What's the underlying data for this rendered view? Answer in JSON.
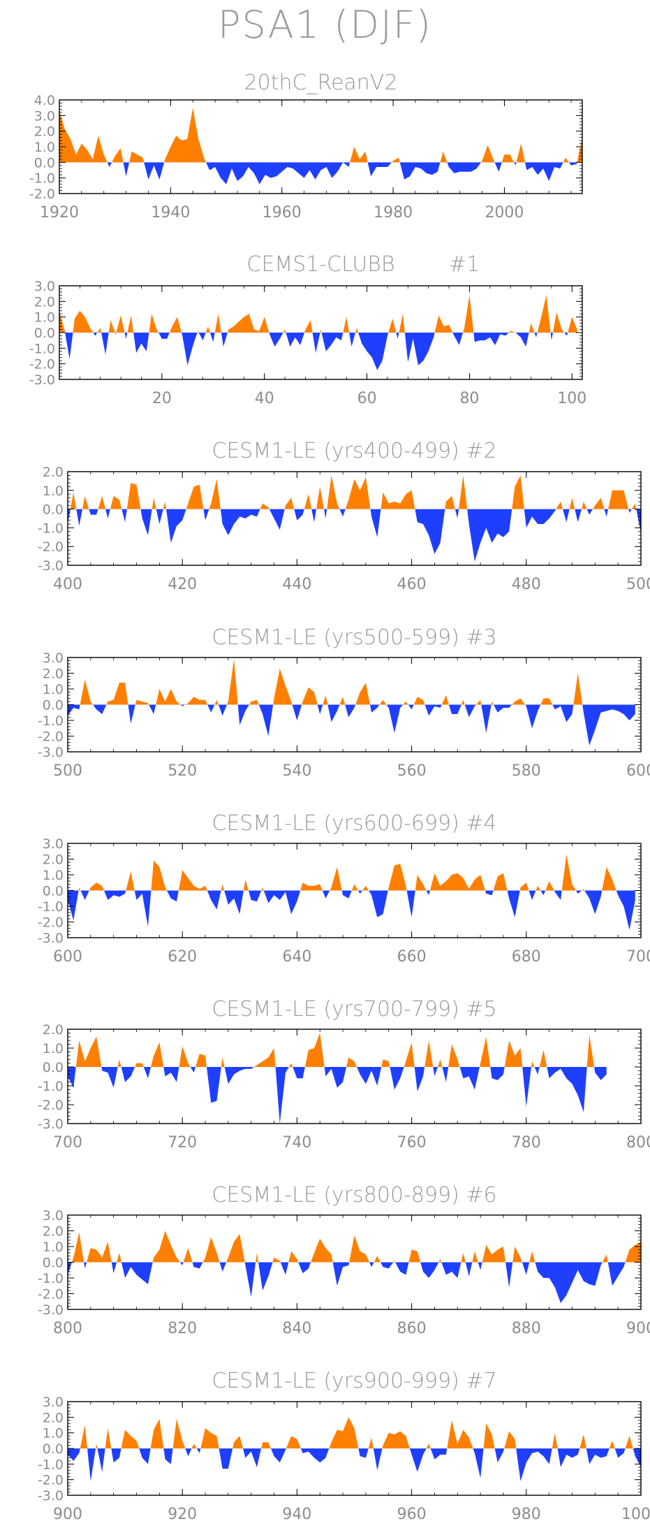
{
  "title": "PSA1 (DJF)",
  "colors": {
    "positive": "#ff7f00",
    "negative": "#1f3fff",
    "frame": "#000000",
    "text": "#9a9a9a"
  },
  "chart_data": [
    {
      "type": "area",
      "title": "20thC_ReanV2",
      "x_start": 1920,
      "xlim": [
        1920,
        2014
      ],
      "xticks": [
        1920,
        1940,
        1960,
        1980,
        2000
      ],
      "yticks": [
        "4.0",
        "3.0",
        "2.0",
        "1.0",
        "0.0",
        "-1.0",
        "-2.0"
      ],
      "ylim": [
        -2.0,
        4.0
      ],
      "values": [
        3.3,
        2.1,
        1.5,
        0.5,
        1.2,
        0.8,
        0.2,
        1.7,
        0.5,
        -0.3,
        0.4,
        0.9,
        -0.9,
        0.7,
        0.5,
        0.3,
        -1.1,
        -0.2,
        -1.1,
        0.2,
        1.0,
        1.7,
        1.4,
        1.5,
        3.5,
        1.5,
        0.3,
        -0.5,
        -0.3,
        -1.0,
        -1.4,
        -0.4,
        -1.2,
        -0.9,
        -0.3,
        -0.7,
        -1.4,
        -0.8,
        -1.0,
        -0.9,
        -0.6,
        -0.3,
        -0.4,
        -0.7,
        -1.0,
        -0.5,
        -1.1,
        -0.5,
        -0.3,
        -1.0,
        -0.6,
        0.0,
        -0.3,
        1.0,
        0.2,
        0.7,
        -0.9,
        -0.3,
        -0.3,
        -0.3,
        0.1,
        0.3,
        -1.1,
        -0.9,
        -0.3,
        -0.4,
        -0.7,
        -0.8,
        -0.6,
        0.7,
        -0.3,
        -0.7,
        -0.6,
        -0.6,
        -0.6,
        -0.4,
        0.1,
        1.1,
        0.2,
        -0.6,
        0.5,
        0.5,
        -0.2,
        1.2,
        -0.5,
        -0.3,
        -0.8,
        -0.4,
        -1.2,
        -0.3,
        -0.4,
        0.3,
        -0.2,
        -0.1,
        1.6
      ]
    },
    {
      "type": "area",
      "title": "CEMS1-CLUBB",
      "tag": "#1",
      "x_start": 0,
      "xlim": [
        0,
        102
      ],
      "xticks": [
        20,
        40,
        60,
        80,
        100
      ],
      "yticks": [
        "3.0",
        "2.0",
        "1.0",
        "0.0",
        "-1.0",
        "-2.0",
        "-3.0"
      ],
      "ylim": [
        -3.0,
        3.0
      ],
      "values": [
        1.3,
        0.2,
        -1.7,
        0.9,
        1.4,
        1.0,
        0.3,
        -0.2,
        0.3,
        -1.4,
        0.8,
        -0.1,
        1.1,
        -0.4,
        1.1,
        -1.3,
        -0.7,
        -1.2,
        1.2,
        0.2,
        -0.4,
        -0.4,
        0.4,
        1.0,
        -0.2,
        -2.1,
        -0.9,
        0.1,
        -0.5,
        0.4,
        -0.6,
        1.2,
        -0.9,
        0.2,
        0.4,
        0.7,
        1.0,
        1.2,
        0.2,
        0.1,
        1.0,
        -0.1,
        -0.9,
        -0.4,
        0.2,
        -0.9,
        -0.3,
        -0.8,
        0.2,
        0.8,
        -1.3,
        0.2,
        -1.2,
        -0.8,
        -0.3,
        -0.5,
        1.0,
        -0.9,
        0.3,
        -0.7,
        -1.2,
        -1.6,
        -2.4,
        -1.8,
        -0.2,
        0.9,
        -0.4,
        1.2,
        -1.9,
        -0.4,
        -2.1,
        -1.8,
        -1.2,
        -0.3,
        1.1,
        0.4,
        0.5,
        -0.2,
        -0.8,
        0.3,
        2.4,
        -0.6,
        -0.5,
        -0.5,
        -0.3,
        -0.8,
        -0.1,
        -0.2,
        0.1,
        0.0,
        -0.3,
        -0.9,
        0.6,
        -0.3,
        1.0,
        2.4,
        -0.5,
        1.3,
        0.2,
        -0.2,
        1.0,
        0.2
      ]
    },
    {
      "type": "area",
      "title": "CESM1-LE (yrs400-499)",
      "tag": "#2",
      "x_start": 400,
      "xlim": [
        400,
        500
      ],
      "xticks": [
        400,
        420,
        440,
        460,
        480,
        500
      ],
      "yticks": [
        "2.0",
        "1.0",
        "0.0",
        "-1.0",
        "-2.0",
        "-3.0"
      ],
      "ylim": [
        -3.0,
        2.0
      ],
      "values": [
        -0.8,
        0.9,
        -0.9,
        0.7,
        -0.3,
        -0.3,
        0.7,
        -0.5,
        0.7,
        0.5,
        -0.7,
        1.4,
        1.3,
        -0.5,
        -1.4,
        0.6,
        -0.8,
        0.4,
        -1.8,
        -0.9,
        -0.6,
        0.3,
        1.2,
        1.3,
        -0.6,
        0.3,
        1.6,
        -0.8,
        -1.4,
        -0.8,
        -0.4,
        -0.5,
        -0.3,
        -0.4,
        0.3,
        0.1,
        -0.5,
        -1.1,
        0.2,
        0.6,
        -0.6,
        -0.3,
        0.8,
        -0.7,
        1.2,
        -0.5,
        1.8,
        0.3,
        -0.4,
        0.5,
        1.6,
        1.0,
        1.7,
        -0.4,
        -1.5,
        0.9,
        0.3,
        0.4,
        0.3,
        0.8,
        1.0,
        -0.7,
        -0.8,
        -1.4,
        -2.4,
        -1.8,
        0.4,
        0.7,
        -0.5,
        1.8,
        -0.8,
        -2.8,
        -1.8,
        -1.0,
        -1.8,
        -1.3,
        -1.5,
        -1.2,
        1.2,
        1.8,
        -1.0,
        -0.4,
        -0.8,
        -0.8,
        -0.5,
        -0.1,
        0.4,
        -0.7,
        0.6,
        -0.7,
        0.4,
        -0.3,
        0.2,
        0.6,
        -0.4,
        1.0,
        1.0,
        1.0,
        -0.2,
        0.3,
        -1.3
      ]
    },
    {
      "type": "area",
      "title": "CESM1-LE (yrs500-599)",
      "tag": "#3",
      "x_start": 500,
      "xlim": [
        500,
        600
      ],
      "xticks": [
        500,
        520,
        540,
        560,
        580,
        600
      ],
      "yticks": [
        "3.0",
        "2.0",
        "1.0",
        "0.0",
        "-1.0",
        "-2.0",
        "-3.0"
      ],
      "ylim": [
        -3.0,
        3.0
      ],
      "values": [
        -0.7,
        -0.2,
        -0.3,
        1.6,
        0.2,
        -0.3,
        -0.6,
        0.2,
        0.3,
        1.4,
        1.4,
        -1.2,
        0.3,
        0.2,
        0.1,
        -0.6,
        1.0,
        0.2,
        1.0,
        0.2,
        -0.1,
        0.1,
        0.5,
        0.3,
        0.3,
        -0.5,
        0.3,
        -0.7,
        0.2,
        2.9,
        -1.3,
        -0.4,
        0.2,
        0.3,
        -0.6,
        -2.0,
        0.4,
        2.3,
        1.2,
        0.2,
        -1.0,
        0.2,
        1.1,
        0.8,
        -0.6,
        0.6,
        -1.1,
        -0.4,
        0.5,
        -0.8,
        -0.2,
        0.8,
        1.4,
        -0.5,
        -0.2,
        0.3,
        -0.2,
        -1.8,
        -0.2,
        0.2,
        -0.3,
        0.5,
        0.3,
        -0.7,
        -0.1,
        -0.2,
        0.6,
        -0.6,
        -0.6,
        0.3,
        -0.8,
        -0.1,
        0.3,
        -1.8,
        0.2,
        -0.5,
        -0.2,
        -0.2,
        0.2,
        0.4,
        -0.1,
        -1.5,
        -0.4,
        0.4,
        0.4,
        -0.3,
        -0.1,
        -1.1,
        -0.6,
        2.0,
        -0.5,
        -2.6,
        -1.6,
        -0.5,
        -0.4,
        -0.3,
        -0.4,
        -0.6,
        -1.0,
        -0.6
      ]
    },
    {
      "type": "area",
      "title": "CESM1-LE (yrs600-699)",
      "tag": "#4",
      "x_start": 600,
      "xlim": [
        600,
        700
      ],
      "xticks": [
        600,
        620,
        640,
        660,
        680,
        700
      ],
      "yticks": [
        "3.0",
        "2.0",
        "1.0",
        "0.0",
        "-1.0",
        "-2.0",
        "-3.0"
      ],
      "ylim": [
        -3.0,
        3.0
      ],
      "values": [
        -0.6,
        -1.9,
        0.2,
        -0.6,
        0.2,
        0.5,
        0.3,
        -0.6,
        -0.3,
        -0.4,
        -0.2,
        1.2,
        -0.6,
        -0.2,
        -2.3,
        1.9,
        1.5,
        0.2,
        -0.5,
        -0.7,
        1.3,
        0.8,
        0.3,
        0.1,
        0.3,
        -0.6,
        -1.2,
        0.4,
        -0.9,
        -0.5,
        -1.5,
        0.7,
        -0.6,
        -0.7,
        0.2,
        -0.8,
        -0.3,
        -0.6,
        -0.1,
        -1.5,
        -0.7,
        0.5,
        0.3,
        0.3,
        0.4,
        -0.5,
        0.2,
        1.5,
        -0.3,
        -0.5,
        0.4,
        -0.2,
        0.3,
        -0.3,
        -1.7,
        -1.5,
        0.2,
        1.6,
        1.7,
        0.3,
        -1.7,
        1.0,
        0.4,
        -0.3,
        1.1,
        0.3,
        0.6,
        1.0,
        1.1,
        0.8,
        0.1,
        0.7,
        1.0,
        -0.2,
        -0.3,
        0.9,
        1.1,
        -0.5,
        -1.7,
        0.2,
        0.5,
        -0.6,
        0.3,
        -0.3,
        0.6,
        -0.1,
        -0.6,
        2.3,
        0.4,
        -0.2,
        0.1,
        -0.5,
        -1.5,
        -0.4,
        1.5,
        0.7,
        -0.3,
        -1.0,
        -2.5,
        -0.6
      ]
    },
    {
      "type": "area",
      "title": "CESM1-LE (yrs700-799)",
      "tag": "#5",
      "x_start": 700,
      "xlim": [
        700,
        800
      ],
      "xticks": [
        700,
        720,
        740,
        760,
        780,
        800
      ],
      "yticks": [
        "2.0",
        "1.0",
        "0.0",
        "-1.0",
        "-2.0",
        "-3.0"
      ],
      "ylim": [
        -3.0,
        2.0
      ],
      "values": [
        -0.5,
        -1.1,
        1.4,
        0.3,
        1.0,
        1.6,
        -0.2,
        -0.3,
        -1.1,
        0.4,
        -0.8,
        -0.5,
        0.2,
        0.2,
        -0.6,
        0.6,
        1.3,
        -0.5,
        -0.3,
        -0.8,
        1.1,
        0.2,
        -0.3,
        0.7,
        0.6,
        -1.9,
        -1.8,
        0.5,
        -0.9,
        -0.4,
        -0.2,
        -0.1,
        -0.1,
        0.1,
        0.3,
        0.5,
        1.0,
        -3.0,
        -0.3,
        0.2,
        -0.6,
        -0.6,
        0.9,
        1.0,
        1.8,
        -0.5,
        -0.1,
        -1.1,
        -0.8,
        0.5,
        0.3,
        -0.4,
        -0.9,
        -0.2,
        -1.0,
        0.4,
        0.3,
        -1.2,
        -0.6,
        0.3,
        1.3,
        -1.3,
        -0.5,
        1.4,
        -0.5,
        0.4,
        -0.8,
        1.2,
        0.4,
        -0.6,
        -0.5,
        -1.2,
        0.2,
        1.6,
        -0.6,
        -0.7,
        -0.4,
        1.4,
        0.6,
        1.0,
        -2.1,
        0.3,
        -0.4,
        0.9,
        -0.6,
        -0.3,
        -0.1,
        -0.6,
        -0.9,
        -1.5,
        -2.4,
        1.7,
        -0.3,
        -0.7,
        -0.4
      ]
    },
    {
      "type": "area",
      "title": "CESM1-LE (yrs800-899)",
      "tag": "#6",
      "x_start": 800,
      "xlim": [
        800,
        900
      ],
      "xticks": [
        800,
        820,
        840,
        860,
        880,
        900
      ],
      "yticks": [
        "3.0",
        "2.0",
        "1.0",
        "0.0",
        "-1.0",
        "-2.0",
        "-3.0"
      ],
      "ylim": [
        -3.0,
        3.0
      ],
      "values": [
        -0.8,
        0.3,
        1.9,
        -0.4,
        0.9,
        0.8,
        0.3,
        1.3,
        -0.7,
        0.6,
        -1.0,
        -0.3,
        -0.8,
        -1.1,
        -1.4,
        0.3,
        0.8,
        2.0,
        1.1,
        0.3,
        -0.2,
        0.9,
        -0.3,
        -0.4,
        0.3,
        1.6,
        0.6,
        -0.6,
        0.3,
        1.3,
        1.8,
        -0.2,
        -2.2,
        0.6,
        -1.8,
        -0.9,
        0.3,
        0.1,
        -0.8,
        0.7,
        0.2,
        -0.7,
        -0.4,
        0.6,
        1.5,
        0.9,
        0.5,
        -1.5,
        -0.3,
        -0.2,
        1.7,
        0.7,
        0.5,
        -0.3,
        0.4,
        -0.3,
        -0.4,
        0.1,
        -0.6,
        -0.8,
        0.8,
        0.7,
        -0.6,
        -1.0,
        -0.5,
        0.2,
        -0.8,
        -0.6,
        -1.0,
        0.6,
        -0.9,
        0.7,
        -0.5,
        1.1,
        0.5,
        0.8,
        1.0,
        -1.6,
        1.0,
        0.3,
        -0.8,
        0.7,
        -0.6,
        -1.0,
        -1.0,
        -1.6,
        -2.6,
        -2.1,
        -1.3,
        -0.5,
        -1.2,
        -1.4,
        -1.5,
        -0.2,
        0.5,
        -1.5,
        -0.9,
        -0.3,
        0.8,
        1.1,
        1.3
      ]
    },
    {
      "type": "area",
      "title": "CESM1-LE (yrs900-999)",
      "tag": "#7",
      "x_start": 900,
      "xlim": [
        900,
        1000
      ],
      "xticks": [
        900,
        920,
        940,
        960,
        980,
        1000
      ],
      "yticks": [
        "3.0",
        "2.0",
        "1.0",
        "0.0",
        "-1.0",
        "-2.0",
        "-3.0"
      ],
      "ylim": [
        -3.0,
        3.0
      ],
      "values": [
        -0.4,
        -0.8,
        -0.3,
        1.5,
        -2.1,
        0.3,
        -1.5,
        1.3,
        -0.9,
        -0.6,
        1.2,
        0.8,
        0.5,
        -0.6,
        -1.0,
        1.2,
        1.9,
        -0.7,
        -1.0,
        1.9,
        0.5,
        -0.5,
        0.3,
        -0.3,
        1.3,
        1.0,
        0.8,
        -1.3,
        -1.3,
        0.4,
        0.8,
        -0.6,
        -0.2,
        -1.2,
        0.4,
        0.4,
        -0.5,
        -0.9,
        -0.1,
        0.8,
        0.6,
        -0.3,
        -0.2,
        -0.6,
        -0.9,
        -0.6,
        0.4,
        1.2,
        1.1,
        2.0,
        1.3,
        -0.5,
        -0.6,
        0.7,
        -1.4,
        0.2,
        1.0,
        0.9,
        1.1,
        0.8,
        -0.4,
        -1.5,
        -0.4,
        0.3,
        -0.7,
        -0.4,
        -0.4,
        1.8,
        0.3,
        1.2,
        0.7,
        -0.3,
        -1.9,
        1.6,
        0.9,
        -0.9,
        -0.2,
        1.1,
        0.6,
        -2.1,
        -0.9,
        -0.3,
        -0.2,
        -0.5,
        -1.0,
        1.0,
        -1.2,
        -0.4,
        -0.6,
        -0.4,
        0.9,
        -1.0,
        -0.4,
        -0.6,
        -0.5,
        0.5,
        -0.6,
        -0.3,
        0.8,
        -0.5,
        -1.2
      ]
    }
  ]
}
